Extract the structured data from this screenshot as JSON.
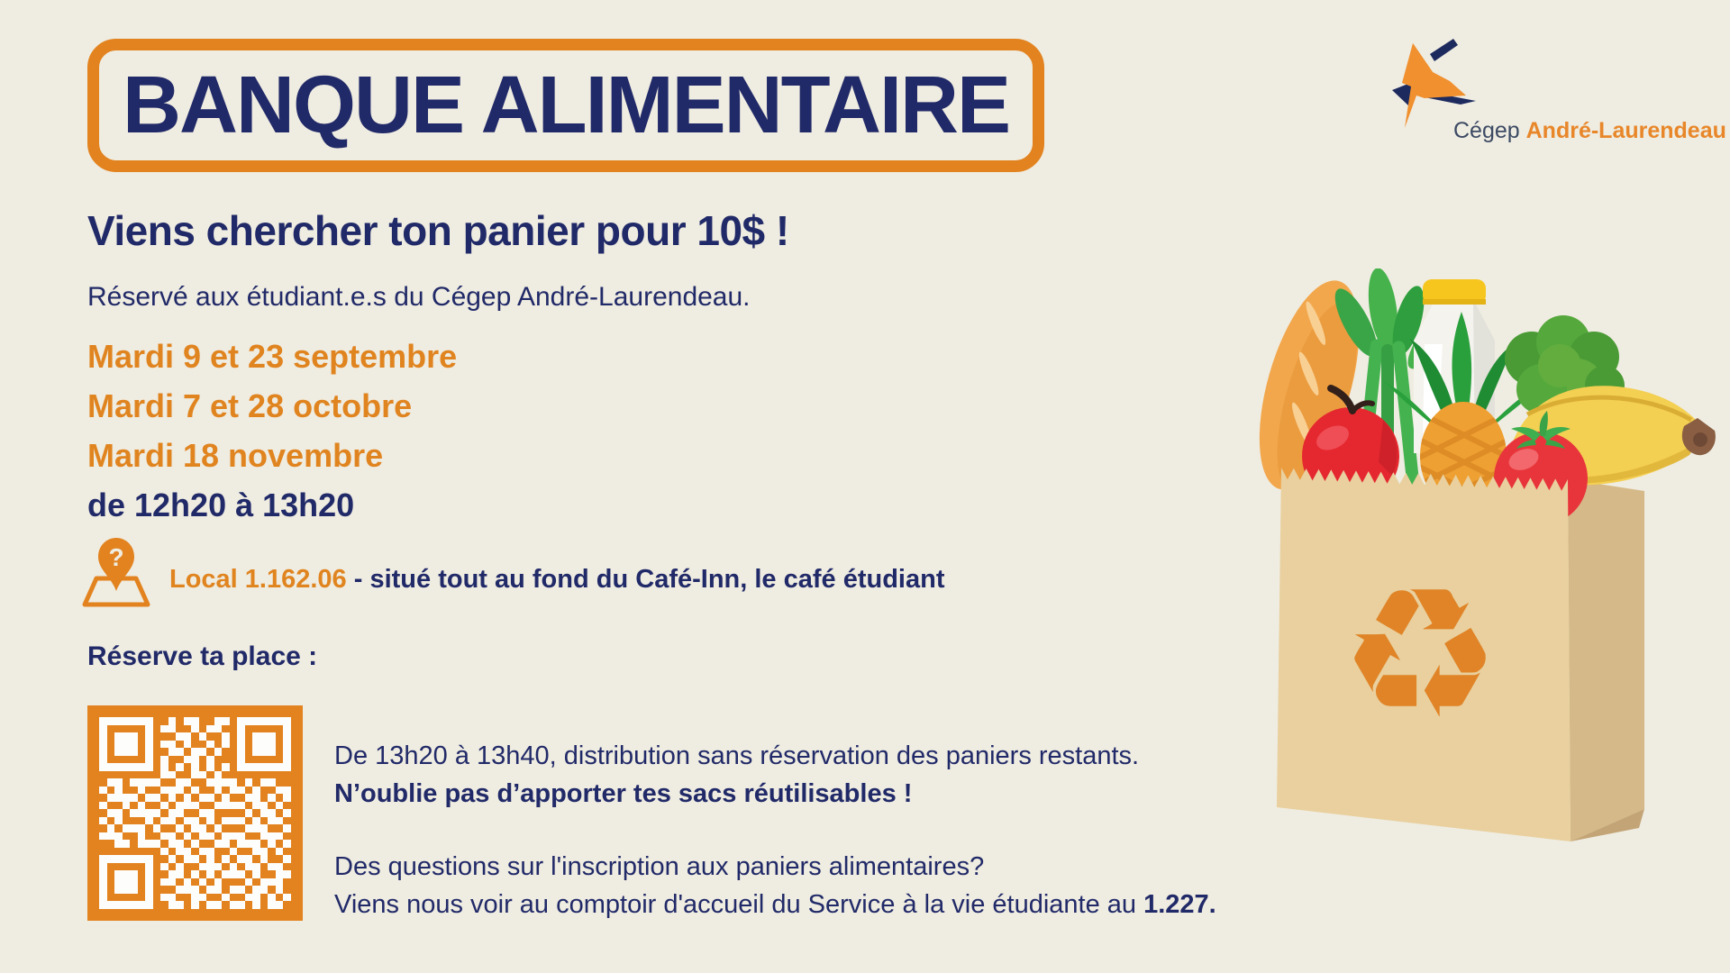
{
  "page": {
    "background": "#efece1",
    "accent_orange": "#e2831f",
    "navy": "#212a68"
  },
  "title_box": {
    "title": "BANQUE ALIMENTAIRE"
  },
  "logo": {
    "prefix": "Cégep ",
    "name": "André-Laurendeau",
    "mark_icon": "cegep-arrow-logo-icon",
    "orange": "#f0902e",
    "navy": "#1d2a5e"
  },
  "intro": {
    "heading": "Viens chercher ton panier pour 10$ !",
    "subheading": "Réservé aux étudiant.e.s du Cégep André-Laurendeau."
  },
  "schedule": {
    "dates": [
      "Mardi 9 et 23 septembre",
      "Mardi 7 et 28 octobre",
      "Mardi 18 novembre"
    ],
    "time": "de 12h20 à 13h20"
  },
  "location": {
    "pin_icon": "map-pin-question-icon",
    "pin_glyph": "?",
    "room": "Local 1.162.06",
    "details": " - situé tout au fond du Café-Inn, le café étudiant"
  },
  "reservation": {
    "label": "Réserve ta place :",
    "qr_icon": "qr-code",
    "qr_color": "#e2831f",
    "qr_matrix": [
      "1111111001011001101111111",
      "1000001011001011001000001",
      "1011101000110100101011101",
      "1011101011010010101011101",
      "1011101001101101001011101",
      "1000001010011010001000001",
      "1111111010101010101111111",
      "0000000011001101000000000",
      "0110111100110011110101100",
      "1010010011101001011010011",
      "0111101101010110100110101",
      "1001010010111001111011010",
      "0110111101100110000101101",
      "1010001011011010111010110",
      "0101110100101101000111001",
      "1110010011010110111001110",
      "0011011101101001101110101",
      "0000000010110110010011010",
      "1111111001011010101101001",
      "1000001010100111010110110",
      "1011101001101010111010011",
      "1011101011010101000101110",
      "1011101000111011011011010",
      "1000001011001100100110101",
      "1111111001101011011010110"
    ]
  },
  "info": {
    "line1": "De 13h20 à 13h40, distribution sans réservation des paniers restants.",
    "line2": "N’oublie pas d’apporter tes sacs réutilisables !"
  },
  "questions": {
    "line1": "Des questions sur l'inscription aux paniers alimentaires?",
    "line2_prefix": "Viens nous voir au comptoir d'accueil du Service à la vie étudiante au ",
    "line2_bold": "1.227."
  },
  "illustration": {
    "name": "grocery-bag-illustration",
    "recycle_glyph": "♻",
    "items": [
      "paper-bag",
      "baguette",
      "apple",
      "celery",
      "milk-bottle",
      "pineapple",
      "lettuce",
      "bananas",
      "tomato",
      "recycle-symbol"
    ],
    "bag_front_color": "#e9d09e",
    "bag_side_color": "#d5b988",
    "recycle_color": "#e08427"
  }
}
